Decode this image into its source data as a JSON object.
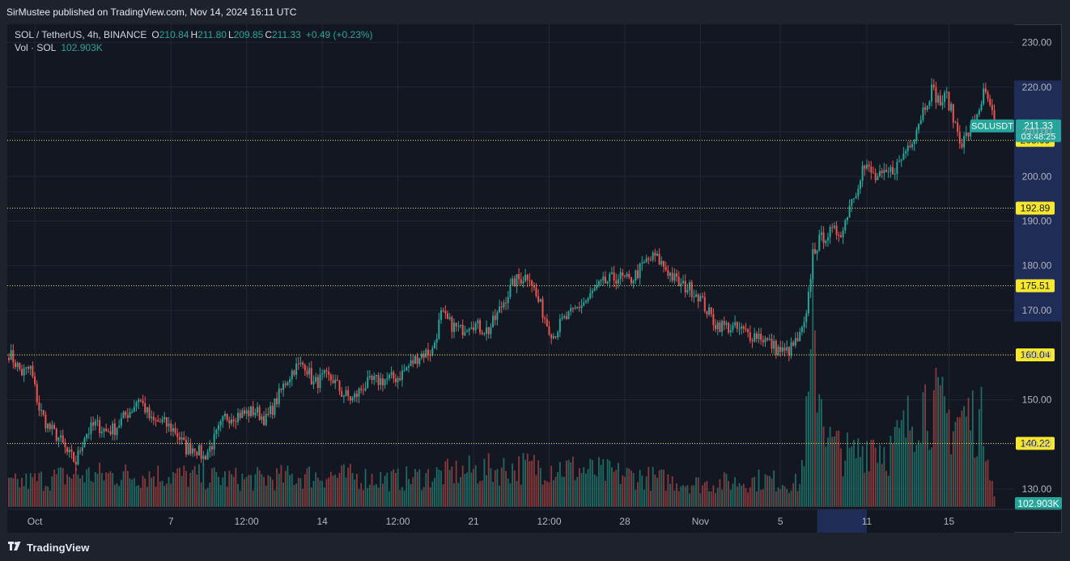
{
  "header": {
    "published_text": "SirMustee published on TradingView.com, Nov 14, 2024 16:11 UTC"
  },
  "legend": {
    "symbol": "SOL / TetherUS, 4h, BINANCE",
    "o_label": "O",
    "o_value": "210.84",
    "h_label": "H",
    "h_value": "211.80",
    "l_label": "L",
    "l_value": "209.85",
    "c_label": "C",
    "c_value": "211.33",
    "change": "+0.49 (+0.23%)",
    "vol_label": "Vol · SOL",
    "vol_value": "102.903K"
  },
  "footer": {
    "brand": "TradingView"
  },
  "colors": {
    "up": "#26a69a",
    "down": "#ef5350",
    "vol_up": "#1e6b63",
    "vol_down": "#8a3a3b",
    "hline": "#e7e13b",
    "highlight": "#1e2c57",
    "grid": "#232734",
    "bg": "#131722"
  },
  "chart_data": {
    "type": "candlestick",
    "symbol": "SOLUSDT",
    "interval": "4h",
    "price_axis": {
      "ticks": [
        130,
        140,
        150,
        160,
        170,
        180,
        190,
        200,
        210,
        220,
        230
      ],
      "tick_labels": [
        "130.00",
        "140.00",
        "150.00",
        "160.00",
        "170.00",
        "180.00",
        "190.00",
        "200.00",
        "210.00",
        "220.00",
        "230.00"
      ],
      "range": [
        126,
        233
      ]
    },
    "time_axis": {
      "labels": [
        "Oct",
        "7",
        "12:00",
        "14",
        "12:00",
        "21",
        "12:00",
        "28",
        "Nov",
        "5",
        "11",
        "15"
      ],
      "label_bar_index": [
        12,
        75,
        110,
        145,
        180,
        215,
        250,
        285,
        320,
        357,
        397,
        435
      ]
    },
    "horizontal_levels": [
      {
        "value": 208.09,
        "label": "208.09"
      },
      {
        "value": 192.89,
        "label": "192.89"
      },
      {
        "value": 175.51,
        "label": "175.51"
      },
      {
        "value": 160.04,
        "label": "160.04"
      },
      {
        "value": 140.22,
        "label": "140.22"
      }
    ],
    "last_price": {
      "symbol_label": "SOLUSDT",
      "value": "211.33",
      "countdown": "03:48:25"
    },
    "volume_label": "102.903K",
    "highlight_price_range": [
      167.5,
      221.5
    ],
    "highlight_bar_range": [
      374,
      397
    ],
    "anchors": [
      [
        0,
        160.5
      ],
      [
        6,
        156
      ],
      [
        10,
        157
      ],
      [
        14,
        148
      ],
      [
        18,
        144
      ],
      [
        23,
        141.5
      ],
      [
        27,
        138
      ],
      [
        31,
        136
      ],
      [
        35,
        142
      ],
      [
        40,
        144.5
      ],
      [
        45,
        143
      ],
      [
        49,
        143.5
      ],
      [
        54,
        146.5
      ],
      [
        57,
        148
      ],
      [
        60,
        150.5
      ],
      [
        63,
        148
      ],
      [
        66,
        145
      ],
      [
        71,
        145
      ],
      [
        77,
        143
      ],
      [
        82,
        139
      ],
      [
        86,
        139.5
      ],
      [
        90,
        137
      ],
      [
        94,
        140
      ],
      [
        100,
        146
      ],
      [
        104,
        146.5
      ],
      [
        110,
        147
      ],
      [
        114,
        147.5
      ],
      [
        119,
        145.5
      ],
      [
        123,
        149
      ],
      [
        128,
        154
      ],
      [
        132,
        157
      ],
      [
        137,
        158
      ],
      [
        141,
        153.5
      ],
      [
        146,
        155
      ],
      [
        150,
        154.5
      ],
      [
        154,
        151.5
      ],
      [
        159,
        150
      ],
      [
        164,
        153
      ],
      [
        168,
        154
      ],
      [
        174,
        154.5
      ],
      [
        180,
        155
      ],
      [
        186,
        158
      ],
      [
        190,
        160
      ],
      [
        196,
        161
      ],
      [
        200,
        169
      ],
      [
        204,
        167
      ],
      [
        209,
        165.5
      ],
      [
        214,
        167.5
      ],
      [
        218,
        166
      ],
      [
        222,
        165.5
      ],
      [
        226,
        169
      ],
      [
        230,
        173
      ],
      [
        234,
        176.5
      ],
      [
        238,
        177.5
      ],
      [
        241,
        178
      ],
      [
        244,
        173
      ],
      [
        246,
        171
      ],
      [
        249,
        167
      ],
      [
        252,
        164.5
      ],
      [
        256,
        167.5
      ],
      [
        260,
        169
      ],
      [
        264,
        171
      ],
      [
        268,
        172.5
      ],
      [
        271,
        174.5
      ],
      [
        275,
        176
      ],
      [
        279,
        177
      ],
      [
        282,
        177.5
      ],
      [
        287,
        176.5
      ],
      [
        291,
        178.5
      ],
      [
        295,
        181
      ],
      [
        299,
        182
      ],
      [
        303,
        180
      ],
      [
        307,
        177.5
      ],
      [
        311,
        175.5
      ],
      [
        315,
        175
      ],
      [
        319,
        173.5
      ],
      [
        323,
        170
      ],
      [
        327,
        167
      ],
      [
        331,
        166.5
      ],
      [
        335,
        166
      ],
      [
        339,
        165.5
      ],
      [
        343,
        164.5
      ],
      [
        347,
        164.5
      ],
      [
        351,
        163
      ],
      [
        355,
        161.5
      ],
      [
        359,
        160.5
      ],
      [
        362,
        161.5
      ],
      [
        366,
        164
      ],
      [
        369,
        168
      ],
      [
        372,
        183
      ],
      [
        375,
        185.5
      ],
      [
        378,
        187
      ],
      [
        382,
        187.5
      ],
      [
        386,
        188
      ],
      [
        389,
        194
      ],
      [
        392,
        197
      ],
      [
        395,
        202
      ],
      [
        398,
        201.5
      ],
      [
        401,
        199.5
      ],
      [
        405,
        200
      ],
      [
        409,
        201.5
      ],
      [
        412,
        203
      ],
      [
        415,
        206
      ],
      [
        419,
        209.5
      ],
      [
        423,
        215
      ],
      [
        427,
        219.5
      ],
      [
        431,
        216.5
      ],
      [
        434,
        218
      ],
      [
        437,
        213
      ],
      [
        441,
        207.5
      ],
      [
        445,
        210.5
      ],
      [
        448,
        214
      ],
      [
        451,
        218.5
      ],
      [
        454,
        216
      ],
      [
        456,
        211.33
      ]
    ],
    "volume_anchors": [
      [
        0,
        0.05
      ],
      [
        30,
        0.07
      ],
      [
        75,
        0.07
      ],
      [
        110,
        0.06
      ],
      [
        145,
        0.07
      ],
      [
        180,
        0.06
      ],
      [
        215,
        0.08
      ],
      [
        250,
        0.09
      ],
      [
        285,
        0.07
      ],
      [
        320,
        0.05
      ],
      [
        350,
        0.06
      ],
      [
        366,
        0.05
      ],
      [
        370,
        0.22
      ],
      [
        372,
        0.36
      ],
      [
        376,
        0.25
      ],
      [
        380,
        0.14
      ],
      [
        390,
        0.11
      ],
      [
        400,
        0.15
      ],
      [
        407,
        0.12
      ],
      [
        415,
        0.17
      ],
      [
        422,
        0.24
      ],
      [
        428,
        0.22
      ],
      [
        436,
        0.19
      ],
      [
        444,
        0.2
      ],
      [
        452,
        0.18
      ],
      [
        456,
        0.02
      ]
    ]
  }
}
